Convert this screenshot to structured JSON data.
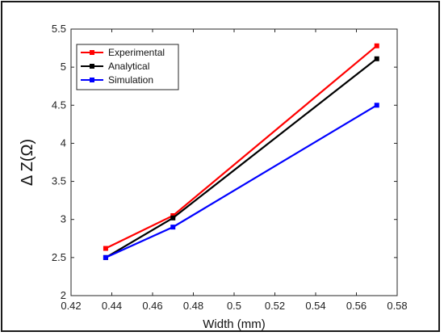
{
  "chart_data": {
    "type": "line",
    "xlabel": "Width (mm)",
    "ylabel": "Δ Z(Ω)",
    "xlim": [
      0.42,
      0.58
    ],
    "ylim": [
      2,
      5.5
    ],
    "x_ticks": [
      "0.42",
      "0.44",
      "0.46",
      "0.48",
      "0.5",
      "0.52",
      "0.54",
      "0.56",
      "0.58"
    ],
    "y_ticks": [
      "2",
      "2.5",
      "3",
      "3.5",
      "4",
      "4.5",
      "5",
      "5.5"
    ],
    "grid": false,
    "legend_position": "top-left",
    "x": [
      0.437,
      0.47,
      0.57
    ],
    "series": [
      {
        "name": "Experimental",
        "color": "#ff0000",
        "values": [
          2.62,
          3.05,
          5.28
        ]
      },
      {
        "name": "Analytical",
        "color": "#000000",
        "values": [
          2.5,
          3.02,
          5.11
        ]
      },
      {
        "name": "Simulation",
        "color": "#0000ff",
        "values": [
          2.5,
          2.9,
          4.5
        ]
      }
    ]
  }
}
